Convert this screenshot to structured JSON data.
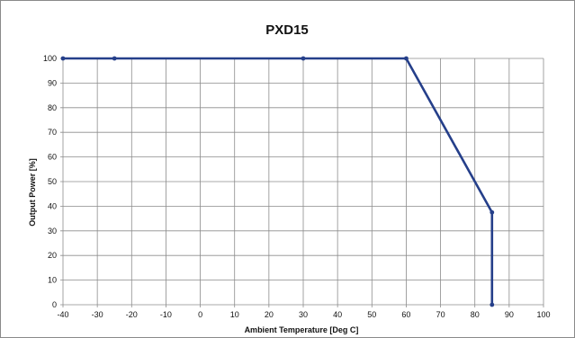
{
  "chart_data": {
    "type": "line",
    "title": "PXD15",
    "xlabel": "Ambient Temperature [Deg C]",
    "ylabel": "Output Power [%]",
    "xlim": [
      -40,
      100
    ],
    "ylim": [
      0,
      100
    ],
    "x_ticks": [
      -40,
      -30,
      -20,
      -10,
      0,
      10,
      20,
      30,
      40,
      50,
      60,
      70,
      80,
      90,
      100
    ],
    "y_ticks": [
      0,
      10,
      20,
      30,
      40,
      50,
      60,
      70,
      80,
      90,
      100
    ],
    "grid": true,
    "legend": "none",
    "series": [
      {
        "color": "#253f8a",
        "points": [
          {
            "x": -40,
            "y": 100
          },
          {
            "x": -25,
            "y": 100
          },
          {
            "x": 30,
            "y": 100
          },
          {
            "x": 60,
            "y": 100
          },
          {
            "x": 85,
            "y": 37.5
          },
          {
            "x": 85,
            "y": 0
          }
        ]
      }
    ]
  }
}
